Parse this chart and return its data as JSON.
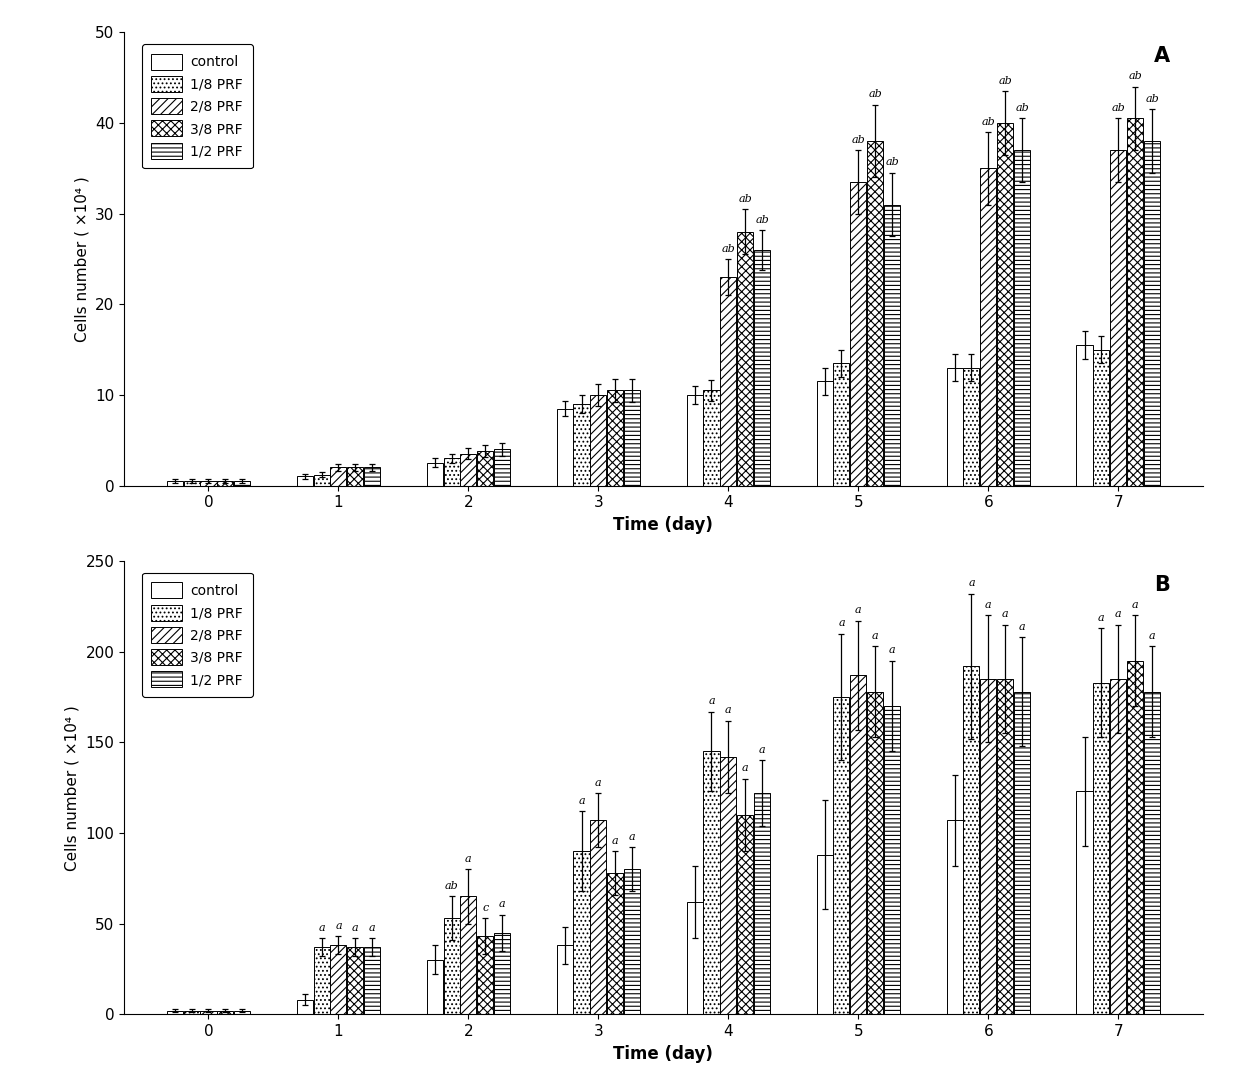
{
  "panel_A": {
    "days": [
      0,
      1,
      2,
      3,
      4,
      5,
      6,
      7
    ],
    "series": {
      "control": {
        "values": [
          0.5,
          1.0,
          2.5,
          8.5,
          10.0,
          11.5,
          13.0,
          15.5
        ],
        "errors": [
          0.2,
          0.3,
          0.5,
          0.8,
          1.0,
          1.5,
          1.5,
          1.5
        ]
      },
      "1/8 PRF": {
        "values": [
          0.5,
          1.2,
          3.0,
          9.0,
          10.5,
          13.5,
          13.0,
          15.0
        ],
        "errors": [
          0.2,
          0.3,
          0.5,
          1.0,
          1.2,
          1.5,
          1.5,
          1.5
        ]
      },
      "2/8 PRF": {
        "values": [
          0.5,
          2.0,
          3.5,
          10.0,
          23.0,
          33.5,
          35.0,
          37.0
        ],
        "errors": [
          0.2,
          0.4,
          0.6,
          1.2,
          2.0,
          3.5,
          4.0,
          3.5
        ]
      },
      "3/8 PRF": {
        "values": [
          0.5,
          2.0,
          3.8,
          10.5,
          28.0,
          38.0,
          40.0,
          40.5
        ],
        "errors": [
          0.2,
          0.4,
          0.7,
          1.3,
          2.5,
          4.0,
          3.5,
          3.5
        ]
      },
      "1/2 PRF": {
        "values": [
          0.5,
          2.0,
          4.0,
          10.5,
          26.0,
          31.0,
          37.0,
          38.0
        ],
        "errors": [
          0.2,
          0.4,
          0.7,
          1.3,
          2.2,
          3.5,
          3.5,
          3.5
        ]
      }
    },
    "significance": {
      "2/8 PRF": [
        null,
        null,
        null,
        null,
        "ab",
        "ab",
        "ab",
        "ab"
      ],
      "3/8 PRF": [
        null,
        null,
        null,
        null,
        "ab",
        "ab",
        "ab",
        "ab"
      ],
      "1/2 PRF": [
        null,
        null,
        null,
        null,
        "ab",
        "ab",
        "ab",
        "ab"
      ]
    },
    "ylim": [
      0,
      50
    ],
    "yticks": [
      0,
      10,
      20,
      30,
      40,
      50
    ],
    "ylabel": "Cells number ( ×10⁴ )",
    "xlabel": "Time (day)",
    "panel_label": "A"
  },
  "panel_B": {
    "days": [
      0,
      1,
      2,
      3,
      4,
      5,
      6,
      7
    ],
    "series": {
      "control": {
        "values": [
          2,
          8,
          30,
          38,
          62,
          88,
          107,
          123
        ],
        "errors": [
          1,
          3,
          8,
          10,
          20,
          30,
          25,
          30
        ]
      },
      "1/8 PRF": {
        "values": [
          2,
          37,
          53,
          90,
          145,
          175,
          192,
          183
        ],
        "errors": [
          1,
          5,
          12,
          22,
          22,
          35,
          40,
          30
        ]
      },
      "2/8 PRF": {
        "values": [
          2,
          38,
          65,
          107,
          142,
          187,
          185,
          185
        ],
        "errors": [
          1,
          5,
          15,
          15,
          20,
          30,
          35,
          30
        ]
      },
      "3/8 PRF": {
        "values": [
          2,
          37,
          43,
          78,
          110,
          178,
          185,
          195
        ],
        "errors": [
          1,
          5,
          10,
          12,
          20,
          25,
          30,
          25
        ]
      },
      "1/2 PRF": {
        "values": [
          2,
          37,
          45,
          80,
          122,
          170,
          178,
          178
        ],
        "errors": [
          1,
          5,
          10,
          12,
          18,
          25,
          30,
          25
        ]
      }
    },
    "significance": {
      "1/8 PRF": [
        null,
        "a",
        "ab",
        "a",
        "a",
        "a",
        "a",
        "a"
      ],
      "2/8 PRF": [
        null,
        "a",
        "a",
        "a",
        "a",
        "a",
        "a",
        "a"
      ],
      "3/8 PRF": [
        null,
        "a",
        "c",
        "a",
        "a",
        "a",
        "a",
        "a"
      ],
      "1/2 PRF": [
        null,
        "a",
        "a",
        "a",
        "a",
        "a",
        "a",
        "a"
      ]
    },
    "ylim": [
      0,
      250
    ],
    "yticks": [
      0,
      50,
      100,
      150,
      200,
      250
    ],
    "ylabel": "Cells number ( ×10⁴ )",
    "xlabel": "Time (day)",
    "panel_label": "B"
  },
  "series_names": [
    "control",
    "1/8 PRF",
    "2/8 PRF",
    "3/8 PRF",
    "1/2 PRF"
  ],
  "legend_labels": [
    "control",
    "1/8 PRF",
    "2/8 PRF",
    "3/8 PRF",
    "1/2 PRF"
  ],
  "bar_width": 0.13,
  "background_color": "#ffffff"
}
